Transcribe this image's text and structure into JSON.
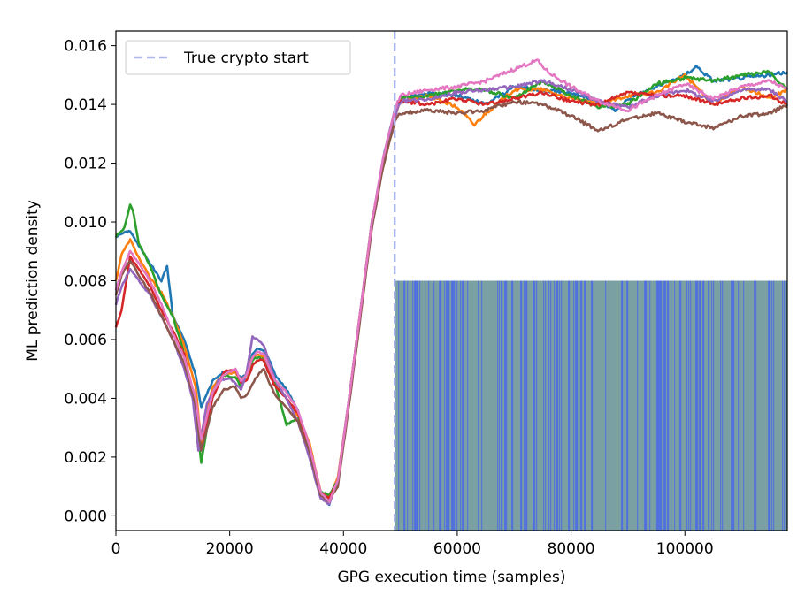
{
  "chart_data": {
    "type": "line",
    "title": "",
    "xlabel": "GPG execution time (samples)",
    "ylabel": "ML prediction density",
    "xlim": [
      0,
      118000
    ],
    "ylim": [
      -0.0005,
      0.0165
    ],
    "xticks": [
      0,
      20000,
      40000,
      60000,
      80000,
      100000
    ],
    "yticks": [
      0.0,
      0.002,
      0.004,
      0.006,
      0.008,
      0.01,
      0.012,
      0.014,
      0.016
    ],
    "xtick_labels": [
      "0",
      "20000",
      "40000",
      "60000",
      "80000",
      "100000"
    ],
    "ytick_labels": [
      "0.000",
      "0.002",
      "0.004",
      "0.006",
      "0.008",
      "0.010",
      "0.012",
      "0.014",
      "0.016"
    ],
    "grid": false,
    "legend": {
      "placement": "top-left",
      "entries": [
        {
          "label": "True crypto start",
          "style": "dashed",
          "color": "#aab4f0"
        }
      ]
    },
    "crypto_start": {
      "x": 49000,
      "color": "#aab4f0"
    },
    "prediction_band": {
      "x_start": 49000,
      "x_end": 118000,
      "y_top": 0.008,
      "colors": [
        "#4f6fe0",
        "#7aa0a4"
      ]
    },
    "series": [
      {
        "color": "#1f77b4",
        "x": [
          0,
          1000,
          2500,
          4000,
          6000,
          8000,
          9000,
          10000,
          12000,
          14000,
          15000,
          17000,
          19000,
          21000,
          22000,
          23000,
          24000,
          25000,
          26000,
          27000,
          28000,
          30000,
          32000,
          34000,
          36000,
          37500,
          39000,
          41000,
          43000,
          45000,
          47000,
          49000,
          50000,
          55000,
          60000,
          65000,
          70000,
          75000,
          80000,
          85000,
          88000,
          90000,
          95000,
          100000,
          102000,
          105000,
          110000,
          115000,
          118000
        ],
        "y": [
          0.0095,
          0.0096,
          0.0097,
          0.0092,
          0.0086,
          0.008,
          0.0085,
          0.0068,
          0.006,
          0.0048,
          0.0037,
          0.0046,
          0.0049,
          0.0049,
          0.0047,
          0.0048,
          0.0055,
          0.0057,
          0.0056,
          0.0053,
          0.0048,
          0.0043,
          0.0036,
          0.0022,
          0.0008,
          0.0004,
          0.0012,
          0.004,
          0.007,
          0.01,
          0.0122,
          0.0138,
          0.0142,
          0.0144,
          0.0143,
          0.014,
          0.0146,
          0.0145,
          0.0144,
          0.0141,
          0.0138,
          0.0142,
          0.0146,
          0.015,
          0.0153,
          0.0148,
          0.0149,
          0.015,
          0.0151
        ]
      },
      {
        "color": "#ff7f0e",
        "x": [
          0,
          1000,
          2500,
          4000,
          6000,
          8000,
          10000,
          12000,
          14000,
          15000,
          17000,
          19000,
          21000,
          22000,
          23000,
          24000,
          25000,
          26000,
          27000,
          28000,
          30000,
          32000,
          34000,
          36000,
          37500,
          39000,
          41000,
          43000,
          45000,
          47000,
          49000,
          50000,
          55000,
          60000,
          63000,
          65000,
          70000,
          75000,
          80000,
          85000,
          90000,
          95000,
          100000,
          105000,
          110000,
          115000,
          118000
        ],
        "y": [
          0.008,
          0.0089,
          0.0094,
          0.0088,
          0.0081,
          0.0076,
          0.0068,
          0.0058,
          0.0044,
          0.0025,
          0.0044,
          0.0048,
          0.0049,
          0.0046,
          0.0048,
          0.0054,
          0.0055,
          0.0054,
          0.0049,
          0.0045,
          0.004,
          0.0034,
          0.0025,
          0.0008,
          0.0006,
          0.0013,
          0.004,
          0.007,
          0.01,
          0.0121,
          0.0136,
          0.0141,
          0.0143,
          0.0139,
          0.0133,
          0.0137,
          0.0145,
          0.0145,
          0.0142,
          0.014,
          0.0143,
          0.0144,
          0.015,
          0.014,
          0.0146,
          0.0142,
          0.0145
        ]
      },
      {
        "color": "#2ca02c",
        "x": [
          0,
          1500,
          2500,
          3000,
          4000,
          6000,
          8000,
          10000,
          12000,
          14000,
          15000,
          17000,
          19000,
          21000,
          22000,
          23000,
          24000,
          25000,
          26000,
          27000,
          28000,
          30000,
          32000,
          34000,
          36000,
          37500,
          39000,
          41000,
          43000,
          45000,
          47000,
          49000,
          50000,
          55000,
          60000,
          65000,
          70000,
          75000,
          80000,
          85000,
          90000,
          95000,
          100000,
          105000,
          110000,
          115000,
          118000
        ],
        "y": [
          0.0095,
          0.0098,
          0.0106,
          0.0104,
          0.0093,
          0.0085,
          0.0075,
          0.0068,
          0.0055,
          0.0035,
          0.0018,
          0.0042,
          0.0048,
          0.0047,
          0.0044,
          0.0048,
          0.0053,
          0.0054,
          0.0053,
          0.005,
          0.0045,
          0.0031,
          0.0033,
          0.0022,
          0.0008,
          0.0007,
          0.0012,
          0.004,
          0.007,
          0.01,
          0.012,
          0.0137,
          0.0142,
          0.0143,
          0.0145,
          0.0145,
          0.0142,
          0.0148,
          0.0143,
          0.0139,
          0.014,
          0.0147,
          0.0149,
          0.0148,
          0.015,
          0.0151,
          0.0145
        ]
      },
      {
        "color": "#d62728",
        "x": [
          0,
          1000,
          2500,
          4000,
          6000,
          8000,
          10000,
          12000,
          14000,
          15000,
          17000,
          19000,
          21000,
          22000,
          23000,
          24000,
          25000,
          26000,
          27000,
          28000,
          30000,
          32000,
          34000,
          36000,
          37500,
          39000,
          41000,
          43000,
          45000,
          47000,
          49000,
          50000,
          55000,
          60000,
          65000,
          70000,
          75000,
          80000,
          85000,
          90000,
          95000,
          100000,
          105000,
          110000,
          115000,
          118000
        ],
        "y": [
          0.0064,
          0.007,
          0.0088,
          0.0084,
          0.0078,
          0.007,
          0.0063,
          0.0055,
          0.0038,
          0.0022,
          0.004,
          0.0049,
          0.005,
          0.0045,
          0.0046,
          0.0051,
          0.0053,
          0.0053,
          0.0048,
          0.0044,
          0.004,
          0.0035,
          0.0023,
          0.0008,
          0.0006,
          0.0012,
          0.004,
          0.007,
          0.01,
          0.0121,
          0.0137,
          0.0141,
          0.014,
          0.0142,
          0.014,
          0.0142,
          0.0144,
          0.0141,
          0.014,
          0.0144,
          0.0143,
          0.0143,
          0.014,
          0.0142,
          0.0143,
          0.014
        ]
      },
      {
        "color": "#9467bd",
        "x": [
          0,
          1000,
          2500,
          4000,
          6000,
          8000,
          10000,
          12000,
          13500,
          14500,
          16000,
          18000,
          20000,
          21500,
          22000,
          23000,
          24000,
          25000,
          26000,
          27000,
          28000,
          30000,
          32000,
          34000,
          36000,
          37500,
          39000,
          41000,
          43000,
          45000,
          47000,
          49000,
          50000,
          55000,
          60000,
          65000,
          70000,
          75000,
          80000,
          85000,
          90000,
          95000,
          100000,
          105000,
          110000,
          115000,
          118000
        ],
        "y": [
          0.0072,
          0.0078,
          0.0084,
          0.008,
          0.0075,
          0.0068,
          0.006,
          0.005,
          0.004,
          0.0022,
          0.0038,
          0.0046,
          0.0047,
          0.0044,
          0.0043,
          0.0049,
          0.0061,
          0.006,
          0.0058,
          0.0052,
          0.0046,
          0.004,
          0.0032,
          0.002,
          0.0006,
          0.0004,
          0.0012,
          0.004,
          0.007,
          0.01,
          0.012,
          0.0136,
          0.0141,
          0.0142,
          0.0144,
          0.0145,
          0.0146,
          0.0148,
          0.0145,
          0.0141,
          0.0139,
          0.0143,
          0.0145,
          0.0141,
          0.0145,
          0.0145,
          0.0141
        ]
      },
      {
        "color": "#8c564b",
        "x": [
          0,
          1000,
          2500,
          4000,
          6000,
          8000,
          10000,
          12000,
          14000,
          15000,
          17000,
          19000,
          21000,
          22000,
          23000,
          24000,
          25000,
          26000,
          27000,
          28000,
          30000,
          32000,
          34000,
          36000,
          37500,
          39000,
          41000,
          43000,
          45000,
          47000,
          49000,
          50000,
          55000,
          60000,
          65000,
          70000,
          75000,
          80000,
          85000,
          90000,
          95000,
          100000,
          105000,
          110000,
          115000,
          118000
        ],
        "y": [
          0.0075,
          0.0082,
          0.0087,
          0.0082,
          0.0076,
          0.0068,
          0.006,
          0.0052,
          0.0038,
          0.0022,
          0.0037,
          0.0043,
          0.0044,
          0.004,
          0.0041,
          0.0045,
          0.0048,
          0.005,
          0.0045,
          0.0041,
          0.0037,
          0.0032,
          0.0022,
          0.0007,
          0.0005,
          0.001,
          0.0038,
          0.0068,
          0.0098,
          0.0119,
          0.0134,
          0.0137,
          0.0138,
          0.0137,
          0.0138,
          0.0141,
          0.014,
          0.0136,
          0.0131,
          0.0135,
          0.0137,
          0.0134,
          0.0132,
          0.0136,
          0.0137,
          0.014
        ]
      },
      {
        "color": "#e377c2",
        "x": [
          0,
          1000,
          2500,
          4000,
          6000,
          8000,
          10000,
          12000,
          14000,
          15000,
          17000,
          19000,
          21000,
          22000,
          23000,
          24000,
          25000,
          26000,
          27000,
          28000,
          30000,
          32000,
          34000,
          36000,
          37500,
          39000,
          41000,
          43000,
          45000,
          47000,
          49000,
          50000,
          55000,
          60000,
          65000,
          70000,
          74000,
          76000,
          80000,
          85000,
          90000,
          95000,
          100000,
          105000,
          110000,
          115000,
          118000
        ],
        "y": [
          0.0077,
          0.0083,
          0.009,
          0.0086,
          0.008,
          0.0072,
          0.0062,
          0.0054,
          0.004,
          0.0026,
          0.0042,
          0.0048,
          0.005,
          0.0046,
          0.0048,
          0.0054,
          0.0056,
          0.0055,
          0.005,
          0.0046,
          0.0042,
          0.0036,
          0.0024,
          0.0008,
          0.0005,
          0.0012,
          0.004,
          0.007,
          0.01,
          0.0122,
          0.0138,
          0.0143,
          0.0145,
          0.0146,
          0.0148,
          0.0152,
          0.0155,
          0.0151,
          0.0146,
          0.0141,
          0.0138,
          0.0143,
          0.0147,
          0.0142,
          0.0146,
          0.0148,
          0.0145
        ]
      }
    ]
  }
}
